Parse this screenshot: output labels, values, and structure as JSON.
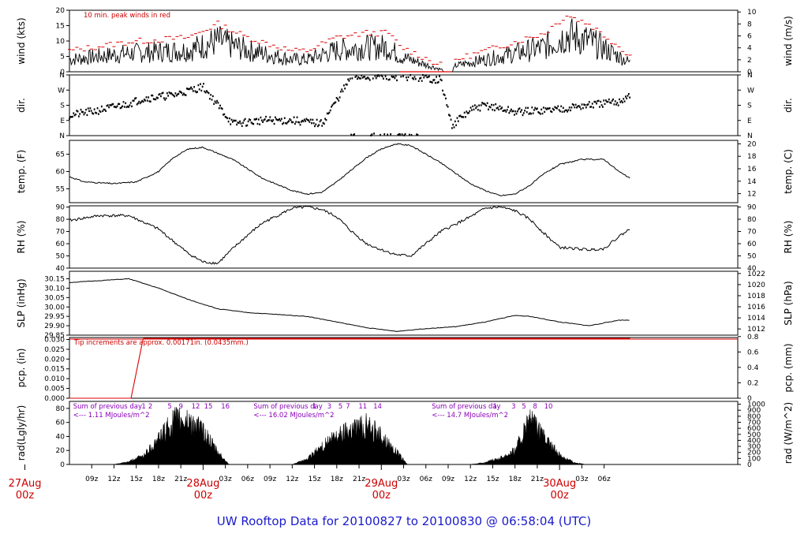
{
  "chart_data": {
    "type": "line",
    "title": "UW Rooftop Data for 20100827  to  20100830 @ 06:58:04  (UTC)",
    "x_range_hours": [
      6.0,
      96.0
    ],
    "x_ticks": [
      {
        "hour": 9,
        "label": "09z"
      },
      {
        "hour": 12,
        "label": "12z"
      },
      {
        "hour": 15,
        "label": "15z"
      },
      {
        "hour": 18,
        "label": "18z"
      },
      {
        "hour": 21,
        "label": "21z"
      },
      {
        "hour": 27,
        "label": "03z"
      },
      {
        "hour": 30,
        "label": "06z"
      },
      {
        "hour": 33,
        "label": "09z"
      },
      {
        "hour": 36,
        "label": "12z"
      },
      {
        "hour": 39,
        "label": "15z"
      },
      {
        "hour": 42,
        "label": "18z"
      },
      {
        "hour": 45,
        "label": "21z"
      },
      {
        "hour": 51,
        "label": "03z"
      },
      {
        "hour": 54,
        "label": "06z"
      },
      {
        "hour": 57,
        "label": "09z"
      },
      {
        "hour": 60,
        "label": "12z"
      },
      {
        "hour": 63,
        "label": "15z"
      },
      {
        "hour": 66,
        "label": "18z"
      },
      {
        "hour": 69,
        "label": "21z"
      },
      {
        "hour": 75,
        "label": "03z"
      },
      {
        "hour": 78,
        "label": "06z"
      }
    ],
    "day_markers": [
      {
        "hour": 0,
        "date": "27Aug",
        "time": "00z"
      },
      {
        "hour": 24,
        "date": "28Aug",
        "time": "00z"
      },
      {
        "hour": 48,
        "date": "29Aug",
        "time": "00z"
      },
      {
        "hour": 72,
        "date": "30Aug",
        "time": "00z"
      }
    ],
    "panels": [
      {
        "key": "wind",
        "ylabel_left": "wind (kts)",
        "ylabel_right": "wind (m/s)",
        "ylim": [
          0,
          20
        ],
        "yticks_left": [
          "0",
          "5",
          "10",
          "15",
          "20"
        ],
        "yticks_right": [
          {
            "v": 0,
            "label": "0"
          },
          {
            "v": 3.89,
            "label": "2"
          },
          {
            "v": 7.78,
            "label": "4"
          },
          {
            "v": 11.66,
            "label": "6"
          },
          {
            "v": 15.55,
            "label": "8"
          },
          {
            "v": 19.44,
            "label": "10"
          }
        ],
        "annotation": "10 min. peak winds in red",
        "series": [
          {
            "x": [
              6,
              14,
              22,
              26,
              30,
              36,
              38,
              42,
              46,
              49,
              50.5,
              57,
              57.5,
              58,
              64,
              70,
              73,
              76,
              80,
              81.5
            ],
            "y": [
              4,
              6,
              7,
              10,
              7,
              4,
              4,
              7,
              8,
              8,
              5,
              0,
              0,
              2,
              5,
              8,
              12,
              10,
              5,
              3
            ]
          }
        ]
      },
      {
        "key": "dir",
        "ylabel_left": "dir.",
        "ylabel_right": "dir.",
        "ylim": [
          0,
          360
        ],
        "yticks": [
          {
            "v": 0,
            "label": "N"
          },
          {
            "v": 90,
            "label": "E"
          },
          {
            "v": 180,
            "label": "S"
          },
          {
            "v": 270,
            "label": "W"
          },
          {
            "v": 360,
            "label": "N"
          }
        ],
        "series": [
          {
            "x": [
              6,
              10,
              14,
              16,
              20,
              24,
              28,
              32,
              36,
              40,
              44,
              48,
              52,
              56,
              57.5,
              60,
              62,
              66,
              70,
              72,
              76,
              80,
              81.5
            ],
            "y": [
              120,
              150,
              190,
              220,
              240,
              290,
              70,
              90,
              90,
              70,
              350,
              350,
              350,
              330,
              60,
              150,
              180,
              140,
              150,
              160,
              180,
              200,
              240
            ]
          }
        ]
      },
      {
        "key": "temp",
        "ylabel_left": "temp. (F)",
        "ylabel_right": "temp. (C)",
        "ylim": [
          51,
          69
        ],
        "yticks_left": [
          "55",
          "60",
          "65"
        ],
        "yticks_right": [
          {
            "v": 53.6,
            "label": "12"
          },
          {
            "v": 57.2,
            "label": "14"
          },
          {
            "v": 60.8,
            "label": "16"
          },
          {
            "v": 64.4,
            "label": "18"
          },
          {
            "v": 68,
            "label": "20"
          }
        ],
        "series": [
          {
            "x": [
              6,
              8,
              12,
              15,
              18,
              20,
              22,
              24,
              28,
              32,
              36,
              38,
              40,
              42,
              44,
              46,
              48,
              50,
              52,
              56,
              60,
              62,
              64,
              66,
              68,
              70,
              72,
              75,
              78,
              80,
              81.5
            ],
            "y": [
              58.5,
              57,
              56.5,
              57,
              60,
              64,
              66.5,
              67,
              63.5,
              58,
              54.5,
              53.5,
              54,
              57,
              60.5,
              64,
              66.5,
              68,
              67.5,
              62.5,
              56.5,
              54.5,
              53,
              53.5,
              56,
              59.5,
              62,
              63.5,
              63.5,
              60,
              58
            ]
          }
        ]
      },
      {
        "key": "rh",
        "ylabel_left": "RH (%)",
        "ylabel_right": "RH (%)",
        "ylim": [
          40,
          91
        ],
        "yticks_left": [
          "40",
          "50",
          "60",
          "70",
          "80",
          "90"
        ],
        "yticks_right": [
          {
            "v": 40,
            "label": "40"
          },
          {
            "v": 50,
            "label": "50"
          },
          {
            "v": 60,
            "label": "60"
          },
          {
            "v": 70,
            "label": "70"
          },
          {
            "v": 80,
            "label": "80"
          },
          {
            "v": 90,
            "label": "90"
          }
        ],
        "series": [
          {
            "x": [
              6,
              10,
              14,
              18,
              20,
              22,
              24,
              26,
              28,
              30,
              32,
              36,
              38,
              40,
              42,
              44,
              46,
              48,
              50,
              52,
              56,
              60,
              62,
              64,
              66,
              68,
              70,
              72,
              76,
              78,
              80,
              81.5
            ],
            "y": [
              79,
              83,
              83,
              72,
              62,
              52,
              45,
              44,
              56,
              67,
              77,
              89,
              90,
              88,
              82,
              70,
              60,
              55,
              51,
              50,
              70,
              82,
              89,
              90,
              87,
              80,
              68,
              57,
              55,
              56,
              66,
              72
            ]
          }
        ]
      },
      {
        "key": "slp",
        "ylabel_left": "SLP (inHg)",
        "ylabel_right": "SLP (hPa)",
        "ylim": [
          29.85,
          30.19
        ],
        "yticks_left": [
          "29.85",
          "29.90",
          "29.95",
          "30.00",
          "30.05",
          "30.10",
          "30.15"
        ],
        "yticks_right": [
          {
            "v": 29.883,
            "label": "1012"
          },
          {
            "v": 29.942,
            "label": "1014"
          },
          {
            "v": 30.001,
            "label": "1016"
          },
          {
            "v": 30.06,
            "label": "1018"
          },
          {
            "v": 30.119,
            "label": "1020"
          },
          {
            "v": 30.178,
            "label": "1022"
          }
        ],
        "series": [
          {
            "x": [
              6,
              10,
              14,
              18,
              22,
              26,
              30,
              34,
              38,
              42,
              46,
              50,
              54,
              58,
              62,
              66,
              68,
              72,
              76,
              80,
              81.5
            ],
            "y": [
              30.13,
              30.14,
              30.15,
              30.1,
              30.04,
              29.99,
              29.97,
              29.96,
              29.95,
              29.92,
              29.89,
              29.87,
              29.885,
              29.895,
              29.92,
              29.955,
              29.95,
              29.92,
              29.9,
              29.93,
              29.93
            ]
          }
        ]
      },
      {
        "key": "pcp",
        "ylabel_left": "pcp. (in)",
        "ylabel_right": "pcp. (mm)",
        "ylim": [
          0,
          0.031
        ],
        "yticks_left": [
          "0.000",
          "0.005",
          "0.010",
          "0.015",
          "0.020",
          "0.025",
          "0.030"
        ],
        "yticks_right": [
          {
            "v": 0,
            "label": "0"
          },
          {
            "v": 0.00787,
            "label": "0.2"
          },
          {
            "v": 0.01575,
            "label": "0.4"
          },
          {
            "v": 0.02362,
            "label": "0.6"
          },
          {
            "v": 0.0315,
            "label": "0.8"
          }
        ],
        "annotation": "Tip increments are approx. 0.00171in. (0.0435mm.)",
        "series": [
          {
            "x": [
              6,
              14.3,
              15.9,
              16.0,
              81.5
            ],
            "y": [
              0.0,
              0.0,
              0.03,
              0.0305,
              0.0305
            ]
          }
        ]
      },
      {
        "key": "rad",
        "ylabel_left": "rad(Lgly/hr)",
        "ylabel_right": "rad (W/m^2)",
        "ylim": [
          0,
          90
        ],
        "yticks_left": [
          "0",
          "20",
          "40",
          "60",
          "80"
        ],
        "yticks_right": [
          {
            "v": 0,
            "label": "0"
          },
          {
            "v": 8.6,
            "label": "100"
          },
          {
            "v": 17.2,
            "label": "200"
          },
          {
            "v": 25.8,
            "label": "300"
          },
          {
            "v": 34.4,
            "label": "400"
          },
          {
            "v": 43.0,
            "label": "500"
          },
          {
            "v": 51.6,
            "label": "600"
          },
          {
            "v": 60.2,
            "label": "700"
          },
          {
            "v": 68.8,
            "label": "800"
          },
          {
            "v": 77.4,
            "label": "900"
          },
          {
            "v": 86.0,
            "label": "1000"
          }
        ],
        "daily_notes": [
          {
            "x": 6.5,
            "line1": "Sum of previous day",
            "line2": "<--- 1.11 MJoules/m^2"
          },
          {
            "x": 30.8,
            "line1": "Sum of previous day",
            "line2": "<--- 16.02 MJoules/m^2"
          },
          {
            "x": 54.8,
            "line1": "Sum of previous day",
            "line2": "<--- 14.7 MJoules/m^2"
          }
        ],
        "hour_labels": [
          {
            "x": 16.0,
            "label": "1"
          },
          {
            "x": 16.9,
            "label": "2"
          },
          {
            "x": 19.5,
            "label": "5"
          },
          {
            "x": 21.0,
            "label": "9"
          },
          {
            "x": 23.0,
            "label": "12"
          },
          {
            "x": 24.7,
            "label": "15"
          },
          {
            "x": 27.0,
            "label": "16"
          },
          {
            "x": 39.0,
            "label": "1"
          },
          {
            "x": 41.0,
            "label": "3"
          },
          {
            "x": 42.5,
            "label": "5"
          },
          {
            "x": 43.5,
            "label": "7"
          },
          {
            "x": 45.5,
            "label": "11"
          },
          {
            "x": 47.5,
            "label": "14"
          },
          {
            "x": 63.3,
            "label": "1"
          },
          {
            "x": 65.8,
            "label": "3"
          },
          {
            "x": 67.2,
            "label": "5"
          },
          {
            "x": 68.7,
            "label": "8"
          },
          {
            "x": 70.5,
            "label": "10"
          }
        ],
        "series": [
          {
            "x": [
              12,
              14,
              16,
              18,
              20,
              22,
              24,
              26,
              27.5,
              36,
              38,
              40,
              42,
              44,
              46,
              48,
              50,
              51.5,
              60,
              62,
              64,
              66,
              68,
              70,
              72,
              74,
              75.5
            ],
            "y": [
              0,
              4,
              14,
              40,
              68,
              70,
              52,
              18,
              0,
              0,
              8,
              28,
              45,
              58,
              62,
              45,
              20,
              0,
              0,
              3,
              10,
              22,
              70,
              40,
              15,
              3,
              0
            ]
          }
        ]
      }
    ]
  }
}
